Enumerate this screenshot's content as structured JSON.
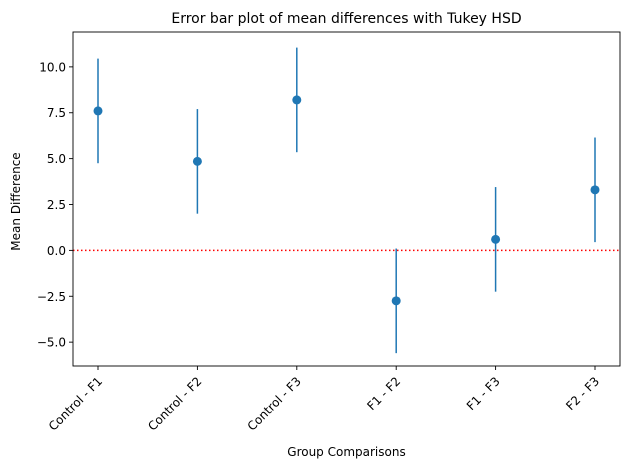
{
  "chart_data": {
    "type": "scatter",
    "title": "Error bar plot of mean differences with Tukey HSD",
    "xlabel": "Group Comparisons",
    "ylabel": "Mean Difference",
    "categories": [
      "Control - F1",
      "Control - F2",
      "Control - F3",
      "F1 - F2",
      "F1 - F3",
      "F2 - F3"
    ],
    "values": [
      7.6,
      4.85,
      8.2,
      -2.75,
      0.6,
      3.3
    ],
    "lower": [
      4.75,
      2.0,
      5.35,
      -5.6,
      -2.25,
      0.45
    ],
    "upper": [
      10.45,
      7.7,
      11.05,
      0.1,
      3.45,
      6.15
    ],
    "ylim": [
      -6.3,
      11.9
    ],
    "yticks": [
      -5.0,
      -2.5,
      0.0,
      2.5,
      5.0,
      7.5,
      10.0
    ],
    "ytick_labels": [
      "−5.0",
      "−2.5",
      "0.0",
      "2.5",
      "5.0",
      "7.5",
      "10.0"
    ],
    "reference_line": {
      "y": 0,
      "style": "dotted",
      "color": "#ff0000"
    },
    "marker_color": "#1f77b4",
    "grid": false,
    "legend": "none"
  }
}
